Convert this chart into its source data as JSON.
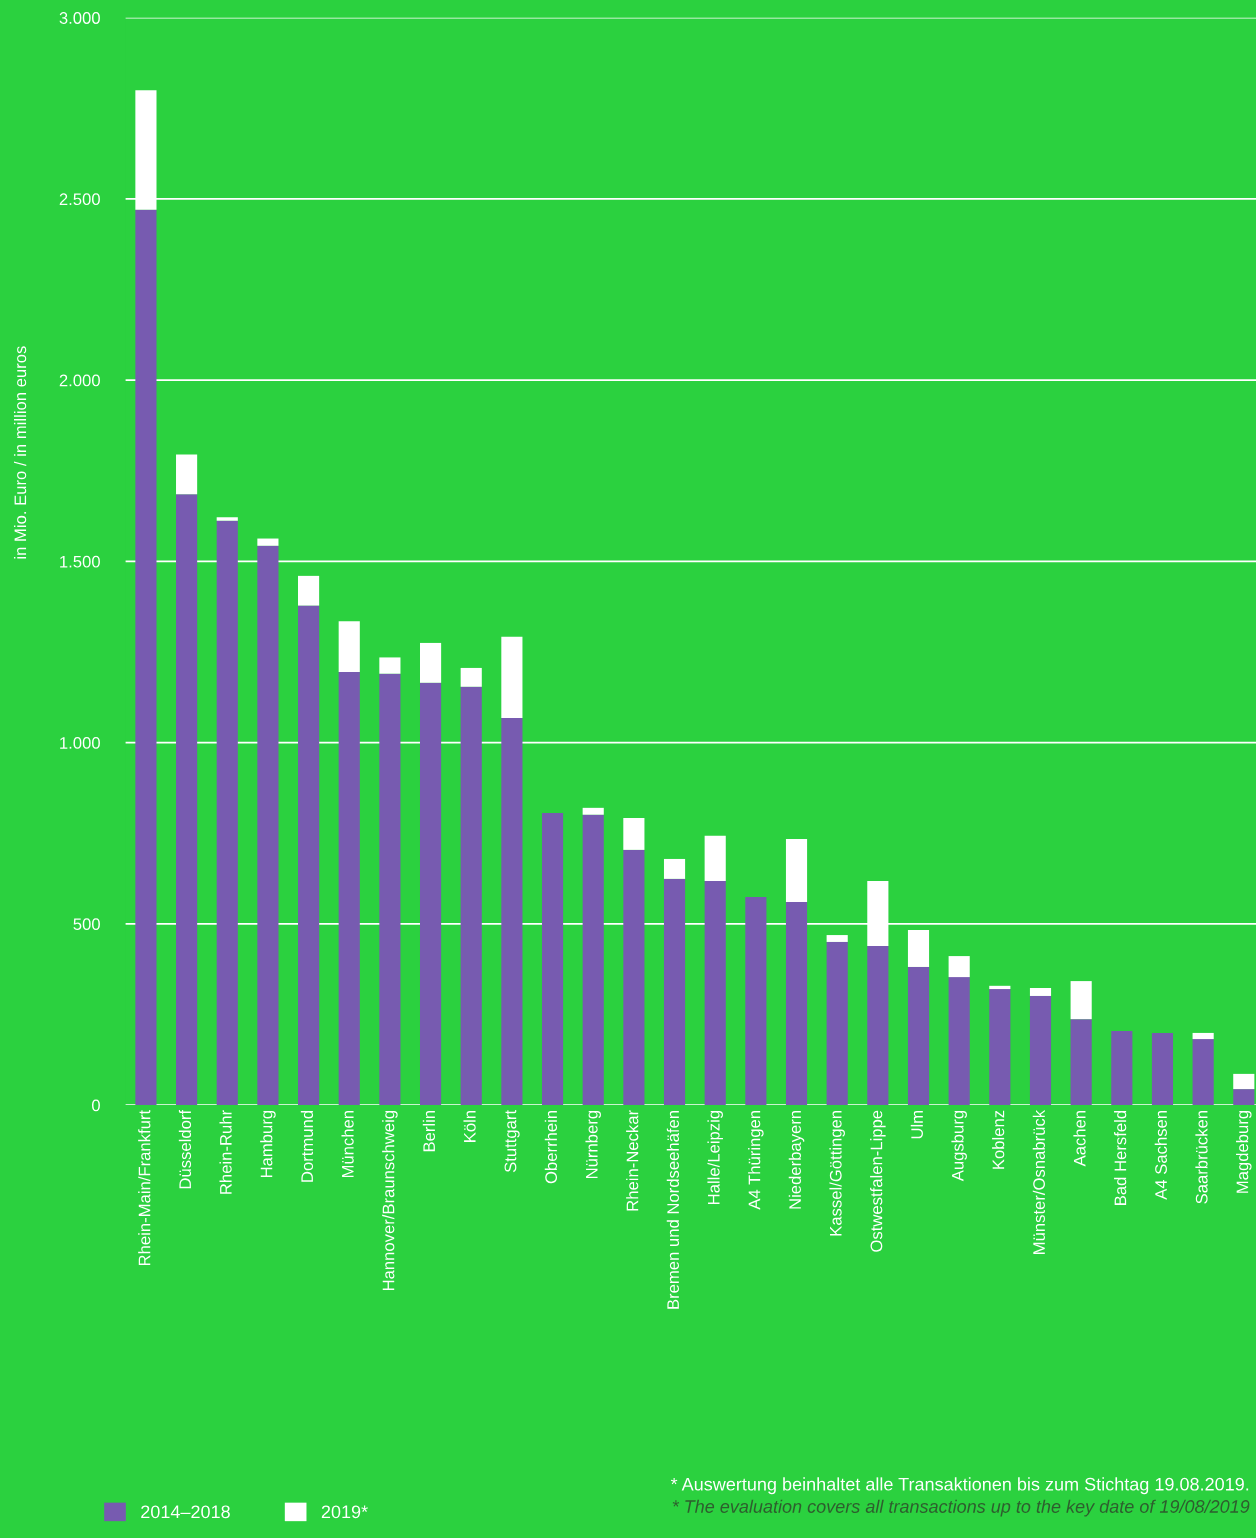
{
  "chart_data": {
    "type": "bar",
    "stacked": true,
    "ylabel": "in Mio. Euro / in million euros",
    "categories": [
      "Rhein-Main/Frankfurt",
      "Düsseldorf",
      "Rhein-Ruhr",
      "Hamburg",
      "Dortmund",
      "München",
      "Hannover/Braunschweig",
      "Berlin",
      "Köln",
      "Stuttgart",
      "Oberrhein",
      "Nürnberg",
      "Rhein-Neckar",
      "Bremen und Nordseehäfen",
      "Halle/Leipzig",
      "A4 Thüringen",
      "Niederbayern",
      "Kassel/Göttingen",
      "Ostwestfalen-Lippe",
      "Ulm",
      "Augsburg",
      "Koblenz",
      "Münster/Osnabrück",
      "Aachen",
      "Bad Hersfeld",
      "A4 Sachsen",
      "Saarbrücken",
      "Magdeburg"
    ],
    "series": [
      {
        "name": "2014–2018",
        "color": "#775bb0",
        "values": [
          2470,
          1685,
          1612,
          1543,
          1378,
          1195,
          1190,
          1165,
          1154,
          1068,
          806,
          801,
          704,
          624,
          618,
          574,
          560,
          450,
          439,
          381,
          353,
          320,
          301,
          237,
          204,
          199,
          182,
          44
        ]
      },
      {
        "name": "2019*",
        "color": "#ffffff",
        "values": [
          330,
          110,
          10,
          20,
          82,
          140,
          45,
          110,
          52,
          224,
          0,
          19,
          88,
          55,
          125,
          0,
          174,
          19,
          179,
          102,
          58,
          9,
          22,
          105,
          0,
          0,
          17,
          42
        ]
      }
    ],
    "ylim": [
      0,
      3000
    ],
    "yticks": [
      0,
      {
        "value": 500,
        "label": "500"
      },
      {
        "value": 1000,
        "label": "1.000"
      },
      {
        "value": 1500,
        "label": "1.500"
      },
      {
        "value": 2000,
        "label": "2.000"
      },
      {
        "value": 2500,
        "label": "2.500"
      },
      {
        "value": 3000,
        "label": "3.000"
      }
    ],
    "grid": "y",
    "legend": "bottom left",
    "annotations": [
      "* Auswertung beinhaltet alle Transaktionen bis zum Stichtag 19.08.2019.",
      "* The evaluation covers all transactions up to the key date of 19/08/2019"
    ]
  }
}
